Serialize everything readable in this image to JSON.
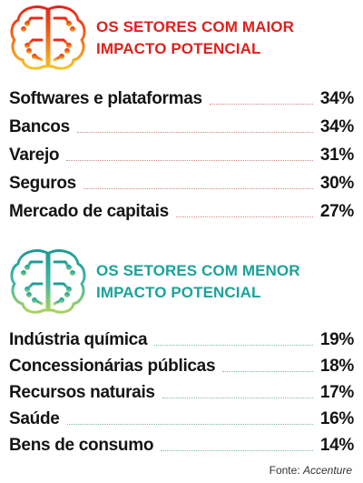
{
  "top": {
    "heading_line1": "OS SETORES COM MAIOR",
    "heading_line2": "IMPACTO POTENCIAL",
    "icon": "brain-circuit-icon",
    "color": "#e0201c",
    "rows": [
      {
        "label": "Softwares e plataformas",
        "value": "34%"
      },
      {
        "label": "Bancos",
        "value": "34%"
      },
      {
        "label": "Varejo",
        "value": "31%"
      },
      {
        "label": "Seguros",
        "value": "30%"
      },
      {
        "label": "Mercado de capitais",
        "value": "27%"
      }
    ]
  },
  "bottom": {
    "heading_line1": "OS SETORES COM MENOR",
    "heading_line2": "IMPACTO POTENCIAL",
    "icon": "brain-circuit-icon",
    "color": "#1aa39a",
    "rows": [
      {
        "label": "Indústria química",
        "value": "19%"
      },
      {
        "label": "Concessionárias públicas",
        "value": "18%"
      },
      {
        "label": "Recursos naturais",
        "value": "17%"
      },
      {
        "label": "Saúde",
        "value": "16%"
      },
      {
        "label": "Bens de consumo",
        "value": "14%"
      }
    ]
  },
  "source": {
    "prefix": "Fonte: ",
    "name": "Accenture"
  }
}
